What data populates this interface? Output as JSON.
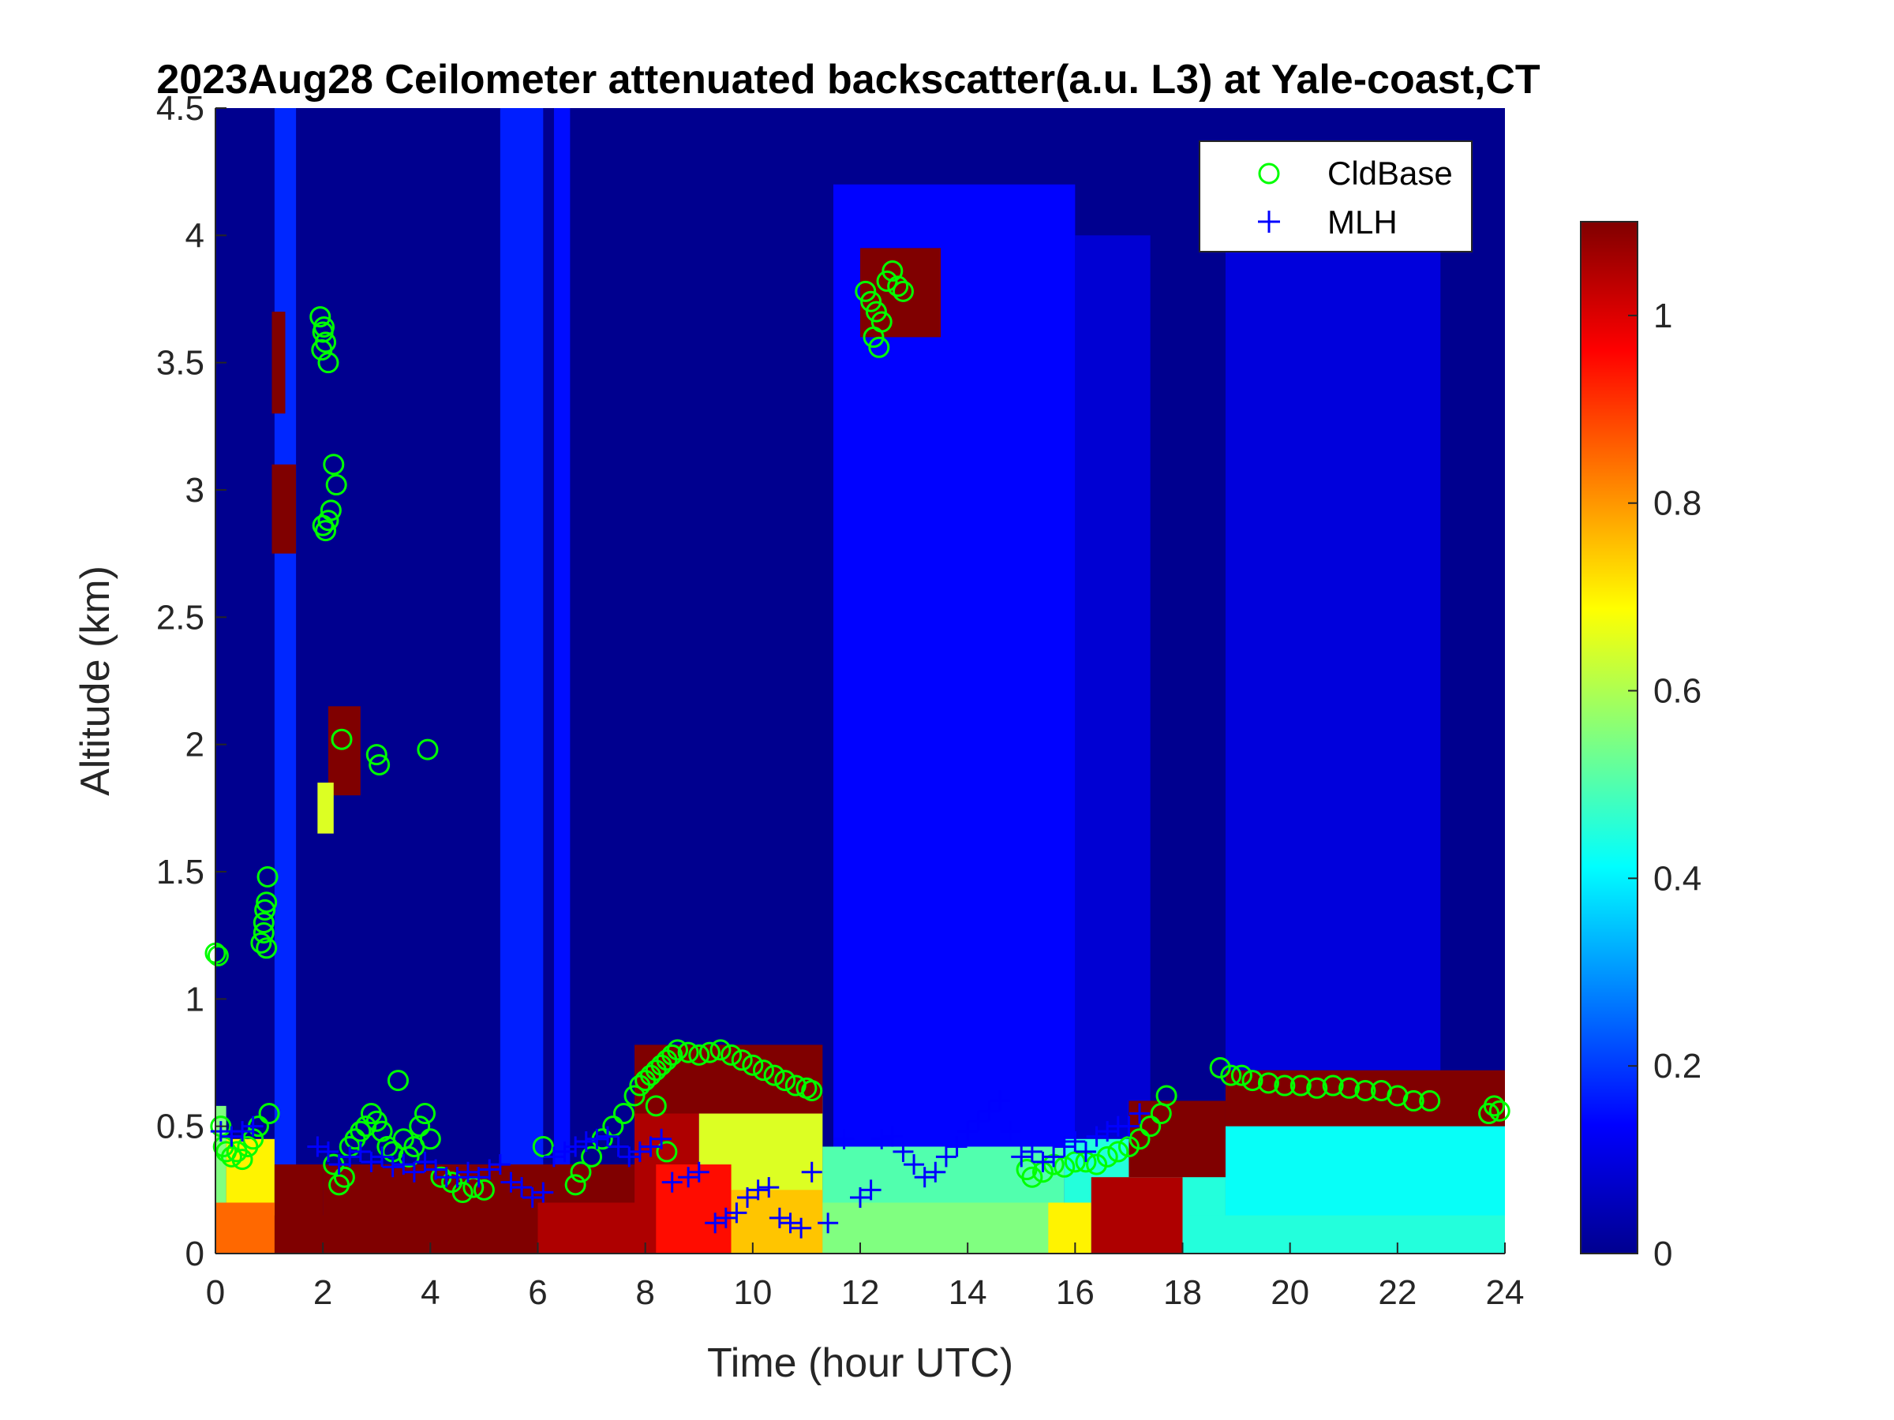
{
  "chart_data": {
    "type": "heatmap",
    "title": "2023Aug28 Ceilometer attenuated backscatter(a.u. L3) at Yale-coast,CT",
    "xlabel": "Time (hour UTC)",
    "ylabel": "Altitude (km)",
    "xlim": [
      0,
      24
    ],
    "ylim": [
      0,
      4.5
    ],
    "x_ticks": [
      "0",
      "2",
      "4",
      "6",
      "8",
      "10",
      "12",
      "14",
      "16",
      "18",
      "20",
      "22",
      "24"
    ],
    "x_tick_values": [
      0,
      2,
      4,
      6,
      8,
      10,
      12,
      14,
      16,
      18,
      20,
      22,
      24
    ],
    "y_ticks": [
      "0",
      "0.5",
      "1",
      "1.5",
      "2",
      "2.5",
      "3",
      "3.5",
      "4",
      "4.5"
    ],
    "y_tick_values": [
      0,
      0.5,
      1,
      1.5,
      2,
      2.5,
      3,
      3.5,
      4,
      4.5
    ],
    "colorbar": {
      "range": [
        0,
        1.1
      ],
      "ticks": [
        "0",
        "0.2",
        "0.4",
        "0.6",
        "0.8",
        "1"
      ],
      "tick_values": [
        0,
        0.2,
        0.4,
        0.6,
        0.8,
        1
      ],
      "colormap": "jet"
    },
    "legend": {
      "placement": "top-right",
      "entries": [
        {
          "label": "CldBase",
          "marker": "circle",
          "color": "#00ff00"
        },
        {
          "label": "MLH",
          "marker": "plus",
          "color": "#0000ff"
        }
      ]
    },
    "grid": false,
    "background": {
      "base_value": 0.02,
      "plumes": [
        {
          "t0": 1.1,
          "t1": 1.5,
          "top": 4.5,
          "value": 0.18
        },
        {
          "t0": 5.3,
          "t1": 6.1,
          "top": 4.5,
          "value": 0.17
        },
        {
          "t0": 6.3,
          "t1": 6.6,
          "top": 4.5,
          "value": 0.15
        },
        {
          "t0": 11.5,
          "t1": 16.0,
          "top": 4.2,
          "value": 0.14
        },
        {
          "t0": 16.0,
          "t1": 17.4,
          "top": 4.0,
          "value": 0.09
        },
        {
          "t0": 18.8,
          "t1": 22.8,
          "top": 4.3,
          "value": 0.1
        }
      ],
      "boundary_layer": [
        {
          "t0": 0.0,
          "t1": 0.2,
          "top": 0.58,
          "value": 0.55
        },
        {
          "t0": 0.2,
          "t1": 1.1,
          "top": 0.45,
          "value": 0.7
        },
        {
          "t0": 1.1,
          "t1": 2.0,
          "top": 0.35,
          "value": 1.1
        },
        {
          "t0": 2.0,
          "t1": 7.8,
          "top": 0.35,
          "value": 1.1
        },
        {
          "t0": 7.8,
          "t1": 9.0,
          "top": 0.72,
          "value": 1.05
        },
        {
          "t0": 9.0,
          "t1": 11.3,
          "top": 0.62,
          "value": 0.65
        },
        {
          "t0": 11.3,
          "t1": 15.8,
          "top": 0.42,
          "value": 0.5
        },
        {
          "t0": 15.8,
          "t1": 18.8,
          "top": 0.45,
          "value": 0.45
        },
        {
          "t0": 18.8,
          "t1": 24.0,
          "top": 0.52,
          "value": 0.42
        }
      ],
      "surface_layer": [
        {
          "t0": 0.0,
          "t1": 1.1,
          "top": 0.2,
          "value": 0.85
        },
        {
          "t0": 1.1,
          "t1": 6.0,
          "top": 0.15,
          "value": 1.1
        },
        {
          "t0": 6.0,
          "t1": 8.2,
          "top": 0.2,
          "value": 1.05
        },
        {
          "t0": 8.2,
          "t1": 9.6,
          "top": 0.35,
          "value": 0.95
        },
        {
          "t0": 9.6,
          "t1": 11.3,
          "top": 0.25,
          "value": 0.75
        },
        {
          "t0": 11.3,
          "t1": 15.5,
          "top": 0.2,
          "value": 0.55
        },
        {
          "t0": 15.5,
          "t1": 16.3,
          "top": 0.2,
          "value": 0.7
        },
        {
          "t0": 16.3,
          "t1": 18.0,
          "top": 0.3,
          "value": 1.05
        },
        {
          "t0": 18.0,
          "t1": 24.0,
          "top": 0.15,
          "value": 0.45
        }
      ],
      "cloud_layers": [
        {
          "t0": 7.8,
          "t1": 11.3,
          "bottom": 0.55,
          "top": 0.82,
          "value": 1.1
        },
        {
          "t0": 17.0,
          "t1": 18.8,
          "bottom": 0.3,
          "top": 0.6,
          "value": 1.1
        },
        {
          "t0": 18.8,
          "t1": 24.0,
          "bottom": 0.5,
          "top": 0.72,
          "value": 1.1
        }
      ],
      "cloud_patches": [
        {
          "t0": 1.05,
          "t1": 1.3,
          "bottom": 3.3,
          "top": 3.7,
          "value": 1.1
        },
        {
          "t0": 1.05,
          "t1": 1.5,
          "bottom": 2.75,
          "top": 3.1,
          "value": 1.1
        },
        {
          "t0": 2.1,
          "t1": 2.7,
          "bottom": 1.8,
          "top": 2.15,
          "value": 1.1
        },
        {
          "t0": 1.9,
          "t1": 2.2,
          "bottom": 1.65,
          "top": 1.85,
          "value": 0.65
        },
        {
          "t0": 12.0,
          "t1": 13.5,
          "bottom": 3.6,
          "top": 3.95,
          "value": 1.1
        }
      ]
    },
    "series": [
      {
        "name": "CldBase",
        "x": [
          0.0,
          0.05,
          0.1,
          0.15,
          0.2,
          0.3,
          0.4,
          0.5,
          0.6,
          0.7,
          0.8,
          0.85,
          0.9,
          0.92,
          0.95,
          0.97,
          1.0,
          0.9,
          0.95,
          1.95,
          2.0,
          2.05,
          2.1,
          1.98,
          2.02,
          2.2,
          2.25,
          2.15,
          2.1,
          2.05,
          2.0,
          2.35,
          3.0,
          3.05,
          3.95,
          2.2,
          2.3,
          2.4,
          2.5,
          2.6,
          2.7,
          2.8,
          2.9,
          3.0,
          3.1,
          3.2,
          3.3,
          3.4,
          3.5,
          3.6,
          3.7,
          3.8,
          3.9,
          4.0,
          4.2,
          4.4,
          4.6,
          4.8,
          5.0,
          6.1,
          6.7,
          6.8,
          7.0,
          7.2,
          7.4,
          7.6,
          7.8,
          7.9,
          8.0,
          8.1,
          8.2,
          8.3,
          8.4,
          8.5,
          8.6,
          8.8,
          9.0,
          9.2,
          9.4,
          9.6,
          9.8,
          10.0,
          10.2,
          10.4,
          10.6,
          10.8,
          11.0,
          11.1,
          8.4,
          8.2,
          12.1,
          12.2,
          12.25,
          12.3,
          12.35,
          12.4,
          12.5,
          12.6,
          12.7,
          12.8,
          15.1,
          15.2,
          15.4,
          15.6,
          15.8,
          16.0,
          16.2,
          16.4,
          16.6,
          16.8,
          17.0,
          17.2,
          17.4,
          17.6,
          17.7,
          18.7,
          18.9,
          19.1,
          19.3,
          19.6,
          19.9,
          20.2,
          20.5,
          20.8,
          21.1,
          21.4,
          21.7,
          22.0,
          22.3,
          22.6,
          23.7,
          23.8,
          23.9
        ],
        "y": [
          1.18,
          1.17,
          0.5,
          0.42,
          0.4,
          0.38,
          0.4,
          0.37,
          0.42,
          0.45,
          0.5,
          1.22,
          1.3,
          1.35,
          1.38,
          1.48,
          0.55,
          1.26,
          1.2,
          3.68,
          3.62,
          3.58,
          3.5,
          3.55,
          3.64,
          3.1,
          3.02,
          2.92,
          2.88,
          2.84,
          2.86,
          2.02,
          1.96,
          1.92,
          1.98,
          0.35,
          0.27,
          0.3,
          0.42,
          0.45,
          0.48,
          0.5,
          0.55,
          0.52,
          0.48,
          0.42,
          0.4,
          0.68,
          0.45,
          0.38,
          0.42,
          0.5,
          0.55,
          0.45,
          0.3,
          0.28,
          0.24,
          0.26,
          0.25,
          0.42,
          0.27,
          0.32,
          0.38,
          0.45,
          0.5,
          0.55,
          0.62,
          0.66,
          0.68,
          0.7,
          0.72,
          0.74,
          0.76,
          0.78,
          0.8,
          0.79,
          0.78,
          0.79,
          0.8,
          0.78,
          0.76,
          0.74,
          0.72,
          0.7,
          0.68,
          0.66,
          0.65,
          0.64,
          0.4,
          0.58,
          3.78,
          3.74,
          3.6,
          3.7,
          3.56,
          3.66,
          3.82,
          3.86,
          3.8,
          3.78,
          0.33,
          0.3,
          0.32,
          0.35,
          0.34,
          0.36,
          0.36,
          0.35,
          0.38,
          0.4,
          0.42,
          0.45,
          0.5,
          0.55,
          0.62,
          0.73,
          0.7,
          0.7,
          0.68,
          0.67,
          0.66,
          0.66,
          0.65,
          0.66,
          0.65,
          0.64,
          0.64,
          0.62,
          0.6,
          0.6,
          0.55,
          0.58,
          0.56
        ]
      },
      {
        "name": "MLH",
        "x": [
          0.1,
          0.3,
          0.5,
          0.7,
          1.9,
          2.1,
          2.3,
          2.5,
          2.7,
          2.9,
          3.1,
          3.3,
          3.5,
          3.7,
          3.9,
          4.1,
          4.3,
          4.5,
          4.7,
          4.9,
          5.1,
          5.3,
          5.5,
          5.7,
          5.9,
          6.1,
          6.3,
          6.5,
          6.7,
          6.9,
          7.1,
          7.3,
          7.5,
          7.7,
          7.9,
          8.1,
          8.3,
          8.5,
          8.8,
          9.0,
          9.3,
          9.5,
          9.7,
          9.9,
          10.1,
          10.3,
          10.5,
          10.7,
          10.9,
          11.1,
          11.4,
          11.7,
          12.0,
          12.2,
          12.4,
          12.6,
          12.8,
          13.0,
          13.2,
          13.4,
          13.6,
          13.8,
          14.0,
          14.2,
          14.4,
          14.6,
          14.8,
          15.0,
          15.2,
          15.4,
          15.6,
          15.8,
          16.0,
          16.2,
          16.4,
          16.6,
          16.8,
          17.0,
          17.2
        ],
        "y": [
          0.48,
          0.46,
          0.48,
          0.5,
          0.42,
          0.4,
          0.35,
          0.38,
          0.4,
          0.36,
          0.38,
          0.34,
          0.35,
          0.32,
          0.36,
          0.33,
          0.3,
          0.3,
          0.32,
          0.3,
          0.33,
          0.35,
          0.28,
          0.26,
          0.22,
          0.24,
          0.38,
          0.4,
          0.42,
          0.44,
          0.45,
          0.46,
          0.42,
          0.38,
          0.4,
          0.42,
          0.45,
          0.28,
          0.3,
          0.32,
          0.12,
          0.14,
          0.16,
          0.22,
          0.25,
          0.26,
          0.14,
          0.12,
          0.1,
          0.32,
          0.12,
          0.45,
          0.22,
          0.25,
          0.45,
          0.46,
          0.4,
          0.35,
          0.3,
          0.32,
          0.38,
          0.42,
          0.48,
          0.52,
          0.56,
          0.6,
          0.48,
          0.38,
          0.4,
          0.36,
          0.38,
          0.42,
          0.44,
          0.4,
          0.46,
          0.48,
          0.5,
          0.5,
          0.55
        ]
      }
    ]
  }
}
